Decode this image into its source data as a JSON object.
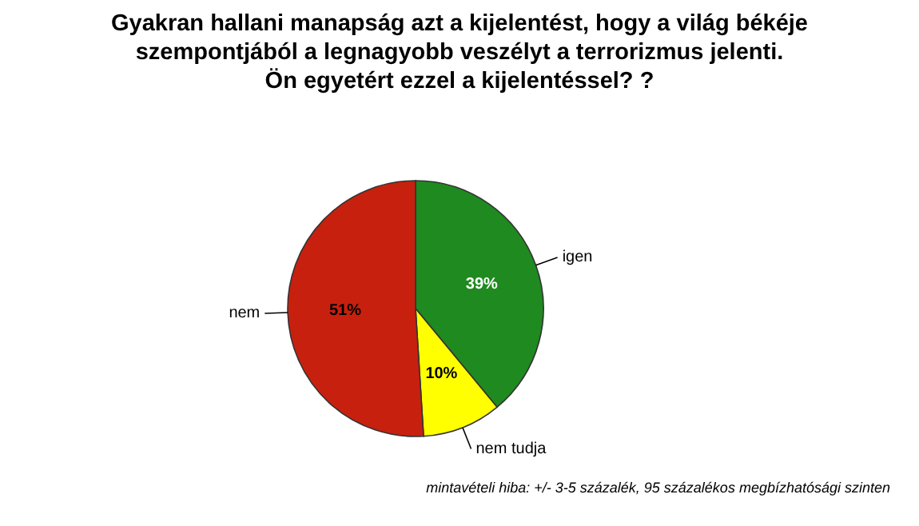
{
  "chart_data": {
    "type": "pie",
    "title": "Gyakran hallani manapság azt a kijelentést, hogy a világ békéje\nszempontjából a legnagyobb veszélyt a terrorizmus jelenti.\nÖn egyetért ezzel a kijelentéssel? ?",
    "categories": [
      "igen",
      "nem tudja",
      "nem"
    ],
    "values": [
      39,
      10,
      51
    ],
    "value_labels": [
      "39%",
      "10%",
      "51%"
    ],
    "colors": [
      "#1f8a1f",
      "#ffff00",
      "#c8200e"
    ],
    "annotations": [
      "mintavételi hiba: +/- 3-5 százalék, 95 százalékos megbízhatósági szinten"
    ]
  }
}
